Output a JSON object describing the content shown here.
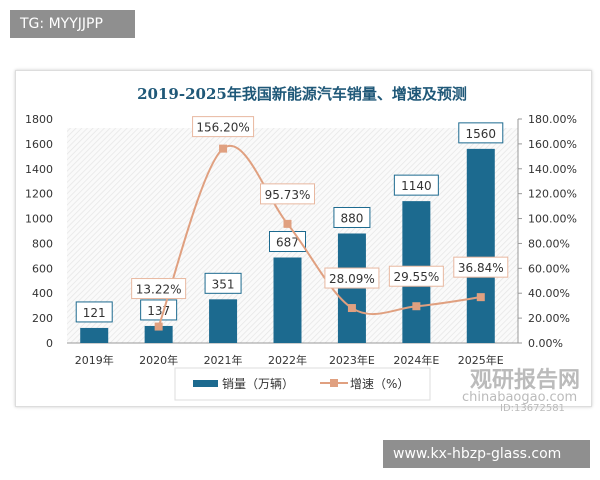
{
  "overlay": {
    "top_left": "TG: MYYJJPP",
    "bottom_right": "www.kx-hbzp-glass.com"
  },
  "watermark": {
    "name": "观研报告网",
    "site": "chinabaogao.com",
    "id": "ID:13672581"
  },
  "chart_data": {
    "type": "bar+line",
    "title": "2019-2025年我国新能源汽车销量、增速及预测",
    "categories": [
      "2019年",
      "2020年",
      "2021年",
      "2022年",
      "2023年E",
      "2024年E",
      "2025年E"
    ],
    "series": [
      {
        "name": "销量（万辆）",
        "type": "bar",
        "axis": "left",
        "values": [
          121,
          137,
          351,
          687,
          880,
          1140,
          1560
        ],
        "labels": [
          "121",
          "137",
          "351",
          "687",
          "880",
          "1140",
          "1560"
        ],
        "color": "#1c6a8f"
      },
      {
        "name": "增速（%）",
        "type": "line",
        "axis": "right",
        "values": [
          null,
          13.22,
          156.2,
          95.73,
          28.09,
          29.55,
          36.84
        ],
        "labels": [
          null,
          "13.22%",
          "156.20%",
          "95.73%",
          "28.09%",
          "29.55%",
          "36.84%"
        ],
        "color": "#e0a080"
      }
    ],
    "y_left": {
      "range": [
        0,
        1800
      ],
      "ticks": [
        "0",
        "200",
        "400",
        "600",
        "800",
        "1000",
        "1200",
        "1400",
        "1600",
        "1800"
      ]
    },
    "y_right": {
      "range": [
        0,
        180
      ],
      "ticks": [
        "0.00%",
        "20.00%",
        "40.00%",
        "60.00%",
        "80.00%",
        "100.00%",
        "120.00%",
        "140.00%",
        "160.00%",
        "180.00%"
      ]
    },
    "legend": "bottom",
    "grid": false
  }
}
